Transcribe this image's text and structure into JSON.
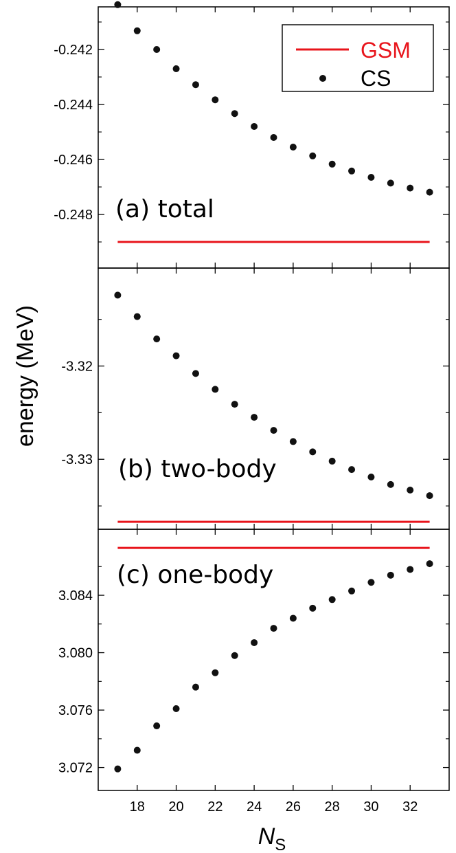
{
  "chart_data": {
    "type": "scatter",
    "shared_x": {
      "label_main": "N",
      "label_sub": "S",
      "range": [
        16,
        34
      ],
      "ticks": [
        "18",
        "20",
        "22",
        "24",
        "26",
        "28",
        "30",
        "32"
      ],
      "tick_values": [
        18,
        20,
        22,
        24,
        26,
        28,
        30,
        32
      ]
    },
    "ylabel": "energy (MeV)",
    "legend": {
      "position": "top-right",
      "entries": [
        {
          "name": "GSM",
          "style": "line",
          "color": "#e8141b"
        },
        {
          "name": "CS",
          "style": "marker",
          "color": "#111111"
        }
      ]
    },
    "colors": {
      "gsm": "#e8141b",
      "cs": "#111111"
    },
    "panels": [
      {
        "id": "a",
        "label": "(a) total",
        "ylim": [
          -0.24995,
          -0.24045
        ],
        "yticks": [
          "-0.242",
          "-0.244",
          "-0.246",
          "-0.248"
        ],
        "ytick_values": [
          -0.242,
          -0.244,
          -0.246,
          -0.248
        ],
        "minor_ytick_values": [
          -0.241,
          -0.243,
          -0.245,
          -0.247,
          -0.249
        ],
        "gsm": {
          "x_range": [
            17,
            33
          ],
          "y": -0.249
        },
        "series": [
          {
            "name": "CS",
            "x": [
              17,
              18,
              19,
              20,
              21,
              22,
              23,
              24,
              25,
              26,
              27,
              28,
              29,
              30,
              31,
              32,
              33
            ],
            "y": [
              -0.24037,
              -0.24132,
              -0.242,
              -0.2427,
              -0.24328,
              -0.24383,
              -0.24433,
              -0.2448,
              -0.2452,
              -0.24555,
              -0.24587,
              -0.24617,
              -0.24642,
              -0.24665,
              -0.24686,
              -0.24704,
              -0.24719
            ]
          }
        ]
      },
      {
        "id": "b",
        "label": "(b) two-body",
        "ylim": [
          -3.3375,
          -3.3095
        ],
        "yticks": [
          "-3.32",
          "-3.33"
        ],
        "ytick_values": [
          -3.32,
          -3.33
        ],
        "minor_ytick_values": [
          -3.315,
          -3.325,
          -3.335
        ],
        "gsm": {
          "x_range": [
            17,
            33
          ],
          "y": -3.3367
        },
        "series": [
          {
            "name": "CS",
            "x": [
              17,
              18,
              19,
              20,
              21,
              22,
              23,
              24,
              25,
              26,
              27,
              28,
              29,
              30,
              31,
              32,
              33
            ],
            "y": [
              -3.3124,
              -3.3147,
              -3.3171,
              -3.3189,
              -3.3208,
              -3.3225,
              -3.3241,
              -3.3255,
              -3.3269,
              -3.3281,
              -3.3292,
              -3.3302,
              -3.3311,
              -3.3319,
              -3.3327,
              -3.3333,
              -3.3339
            ]
          }
        ]
      },
      {
        "id": "c",
        "label": "(c) one-body",
        "ylim": [
          3.0704,
          3.0886
        ],
        "yticks": [
          "3.084",
          "3.080",
          "3.076",
          "3.072"
        ],
        "ytick_values": [
          3.084,
          3.08,
          3.076,
          3.072
        ],
        "minor_ytick_values": [
          3.086,
          3.082,
          3.078,
          3.074
        ],
        "gsm": {
          "x_range": [
            17,
            33
          ],
          "y": 3.0873
        },
        "series": [
          {
            "name": "CS",
            "x": [
              17,
              18,
              19,
              20,
              21,
              22,
              23,
              24,
              25,
              26,
              27,
              28,
              29,
              30,
              31,
              32,
              33
            ],
            "y": [
              3.0719,
              3.0732,
              3.0749,
              3.0761,
              3.0776,
              3.0786,
              3.0798,
              3.0807,
              3.0817,
              3.0824,
              3.0831,
              3.0837,
              3.0843,
              3.0849,
              3.0854,
              3.0858,
              3.0862
            ]
          }
        ]
      }
    ]
  }
}
